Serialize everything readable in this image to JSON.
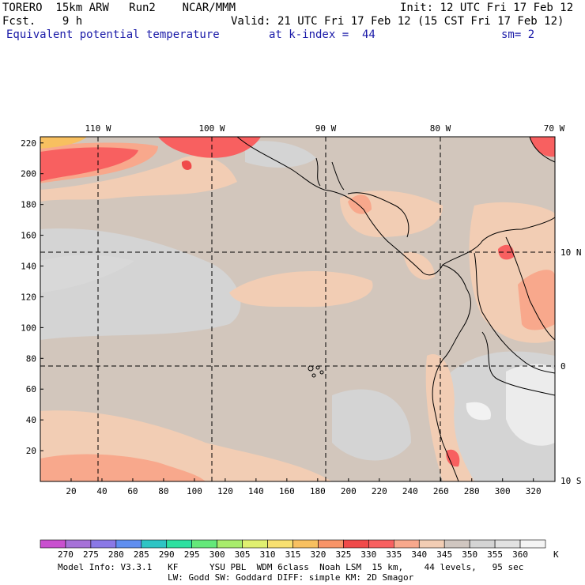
{
  "header": {
    "model": "TORERO  15km ARW   Run2    NCAR/MMM",
    "init": "Init: 12 UTC Fri 17 Feb 12",
    "fcst": "Fcst.    9 h",
    "valid": "Valid: 21 UTC Fri 17 Feb 12 (15 CST Fri 17 Feb 12)",
    "field": "Equivalent potential temperature",
    "level": "at k-index =  44",
    "smooth": "sm= 2"
  },
  "map": {
    "top_lon_labels": [
      "110 W",
      "100 W",
      "90 W",
      "80 W",
      "70 W"
    ],
    "right_lat_labels": [
      "10 N",
      "0",
      "10 S"
    ],
    "y_grid_ticks": [
      "20",
      "40",
      "60",
      "80",
      "100",
      "120",
      "140",
      "160",
      "180",
      "200",
      "220"
    ],
    "x_grid_ticks": [
      "20",
      "40",
      "60",
      "80",
      "100",
      "120",
      "140",
      "160",
      "180",
      "200",
      "220",
      "240",
      "260",
      "280",
      "300",
      "320"
    ]
  },
  "colorbar": {
    "labels": [
      "270",
      "275",
      "280",
      "285",
      "290",
      "295",
      "300",
      "305",
      "310",
      "315",
      "320",
      "325",
      "330",
      "335",
      "340",
      "345",
      "350",
      "355",
      "360"
    ],
    "unit": "K",
    "colors": [
      "#c94fcf",
      "#a671d8",
      "#8a78e6",
      "#5f8ef0",
      "#2ec4c4",
      "#2ee0a0",
      "#64e87a",
      "#a8ec6c",
      "#e0f070",
      "#f8e070",
      "#f8c060",
      "#f89468",
      "#f04a4a",
      "#f86060",
      "#f8a88c",
      "#f2cdb4",
      "#d0c6c0",
      "#d4d4d4",
      "#e2e2e2",
      "#f4f4f4"
    ]
  },
  "footer": {
    "line1": "Model Info: V3.3.1   KF      YSU PBL  WDM 6class  Noah LSM  15 km,    44 levels,   95 sec",
    "line2": "LW: Godd SW: Goddard DIFF: simple KM: 2D Smagor"
  }
}
